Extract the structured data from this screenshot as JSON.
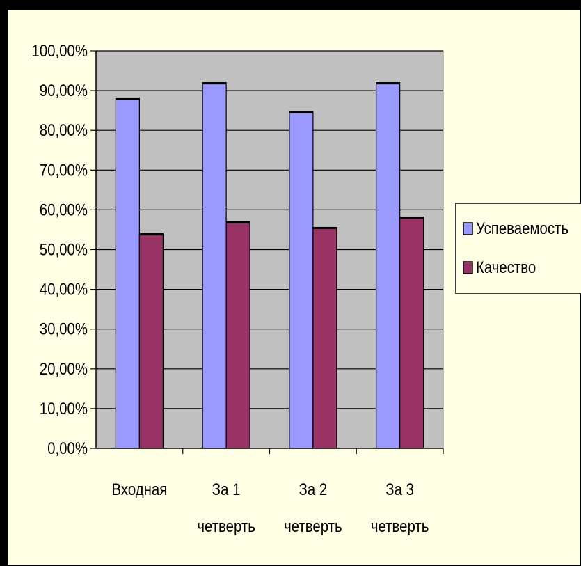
{
  "chart_data": {
    "type": "bar",
    "categories": [
      [
        "Входная"
      ],
      [
        "За 1",
        "четверть"
      ],
      [
        "За 2",
        "четверть"
      ],
      [
        "За 3",
        "четверть"
      ]
    ],
    "series": [
      {
        "name": "Успеваемость",
        "values": [
          88.0,
          92.0,
          84.7,
          92.0
        ],
        "color": "#9999ff"
      },
      {
        "name": "Качество",
        "values": [
          54.0,
          57.0,
          55.6,
          58.2
        ],
        "color": "#993366"
      }
    ],
    "y_ticks": [
      "0,00%",
      "10,00%",
      "20,00%",
      "30,00%",
      "40,00%",
      "50,00%",
      "60,00%",
      "70,00%",
      "80,00%",
      "90,00%",
      "100,00%"
    ],
    "ylim": [
      0,
      100
    ],
    "grid": true,
    "legend_position": "right",
    "plot_background": "#c0c0c0",
    "chart_background": "#ffffe6"
  }
}
